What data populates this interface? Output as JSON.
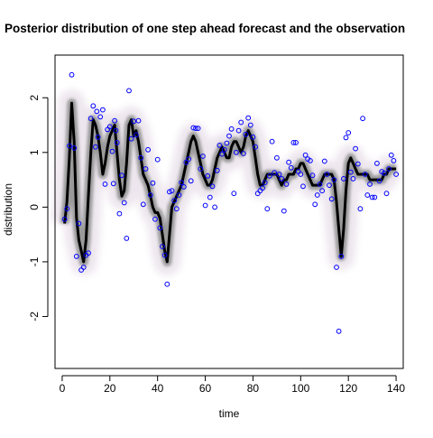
{
  "chart_data": {
    "type": "scatter",
    "title": "Posterior distribution of one step ahead forecast and the observation",
    "xlabel": "time",
    "ylabel": "distribution",
    "xlim": [
      -3,
      143
    ],
    "ylim": [
      -2.95,
      2.78
    ],
    "x_ticks": [
      0,
      20,
      40,
      60,
      80,
      100,
      120,
      140
    ],
    "y_ticks": [
      -2,
      -1,
      0,
      1,
      2
    ],
    "grid": false,
    "legend": "none",
    "colors": {
      "points": "#0000ff",
      "forecast": "#000000",
      "axes": "#000000"
    },
    "series": [
      {
        "kind": "forecast-density",
        "x": [
          1,
          2,
          3,
          4,
          5,
          6,
          7,
          8,
          9,
          10,
          11,
          12,
          13,
          14,
          15,
          16,
          17,
          18,
          19,
          20,
          21,
          22,
          23,
          24,
          25,
          26,
          27,
          28,
          29,
          30,
          31,
          32,
          33,
          34,
          35,
          36,
          37,
          38,
          39,
          40,
          41,
          42,
          43,
          44,
          45,
          46,
          47,
          48,
          49,
          50,
          51,
          52,
          53,
          54,
          55,
          56,
          57,
          58,
          59,
          60,
          61,
          62,
          63,
          64,
          65,
          66,
          67,
          68,
          69,
          70,
          71,
          72,
          73,
          74,
          75,
          76,
          77,
          78,
          79,
          80,
          81,
          82,
          83,
          84,
          85,
          86,
          87,
          88,
          89,
          90,
          91,
          92,
          93,
          94,
          95,
          96,
          97,
          98,
          99,
          100,
          101,
          102,
          103,
          104,
          105,
          106,
          107,
          108,
          109,
          110,
          111,
          112,
          113,
          114,
          115,
          116,
          117,
          118,
          119,
          120,
          121,
          122,
          123,
          124,
          125,
          126,
          127,
          128,
          129,
          130,
          131,
          132,
          133,
          134,
          135,
          136,
          137,
          138,
          139,
          140
        ],
        "y": [
          -0.3,
          0.1,
          0.9,
          1.9,
          1.2,
          -0.2,
          -0.6,
          -0.8,
          -1.0,
          -0.6,
          0.2,
          1.0,
          1.6,
          1.5,
          1.3,
          1.0,
          0.6,
          0.8,
          1.1,
          1.3,
          1.4,
          1.5,
          1.0,
          0.5,
          0.2,
          0.3,
          0.8,
          1.5,
          1.6,
          1.3,
          1.4,
          1.2,
          0.9,
          0.6,
          0.5,
          0.4,
          0.2,
          0.0,
          -0.1,
          -0.1,
          -0.2,
          -0.5,
          -0.8,
          -1.0,
          -0.5,
          0.0,
          0.1,
          0.2,
          0.3,
          0.4,
          0.6,
          0.8,
          1.0,
          1.2,
          1.3,
          1.2,
          1.0,
          0.8,
          0.6,
          0.5,
          0.4,
          0.4,
          0.5,
          0.7,
          0.9,
          1.0,
          1.1,
          1.0,
          0.9,
          0.9,
          1.1,
          1.2,
          1.2,
          1.1,
          1.0,
          1.1,
          1.3,
          1.4,
          1.3,
          1.2,
          0.9,
          0.6,
          0.4,
          0.4,
          0.5,
          0.6,
          0.6,
          0.6,
          0.6,
          0.6,
          0.5,
          0.4,
          0.5,
          0.5,
          0.6,
          0.6,
          0.6,
          0.7,
          0.7,
          0.8,
          0.8,
          0.7,
          0.6,
          0.5,
          0.4,
          0.4,
          0.4,
          0.4,
          0.5,
          0.6,
          0.6,
          0.6,
          0.6,
          0.5,
          0.1,
          -0.4,
          -0.9,
          -0.4,
          0.3,
          0.8,
          0.9,
          0.8,
          0.7,
          0.6,
          0.6,
          0.6,
          0.6,
          0.6,
          0.5,
          0.5,
          0.5,
          0.5,
          0.5,
          0.5,
          0.6,
          0.6,
          0.7,
          0.7,
          0.7,
          0.7
        ]
      },
      {
        "kind": "observations",
        "points": [
          [
            1,
            -0.22
          ],
          [
            2,
            -0.03
          ],
          [
            3,
            1.12
          ],
          [
            4,
            2.42
          ],
          [
            5,
            1.08
          ],
          [
            6,
            -0.9
          ],
          [
            7,
            -0.3
          ],
          [
            8,
            -1.15
          ],
          [
            9,
            -1.1
          ],
          [
            10,
            -0.88
          ],
          [
            11,
            -0.84
          ],
          [
            12,
            1.62
          ],
          [
            13,
            1.85
          ],
          [
            14,
            1.1
          ],
          [
            14.5,
            1.75
          ],
          [
            15,
            1.28
          ],
          [
            16,
            1.65
          ],
          [
            17,
            1.78
          ],
          [
            18,
            0.42
          ],
          [
            19,
            1.42
          ],
          [
            20,
            1.47
          ],
          [
            21,
            1.02
          ],
          [
            21.5,
            0.43
          ],
          [
            22,
            1.58
          ],
          [
            22.5,
            1.4
          ],
          [
            23,
            1.18
          ],
          [
            24,
            -0.12
          ],
          [
            25,
            0.58
          ],
          [
            26,
            0.08
          ],
          [
            27,
            -0.57
          ],
          [
            28,
            2.13
          ],
          [
            29,
            1.25
          ],
          [
            30,
            1.57
          ],
          [
            31,
            1.32
          ],
          [
            32,
            1.58
          ],
          [
            33,
            0.9
          ],
          [
            34,
            0.05
          ],
          [
            35,
            0.7
          ],
          [
            36,
            1.05
          ],
          [
            37,
            0.22
          ],
          [
            38,
            0.44
          ],
          [
            39,
            -0.22
          ],
          [
            40,
            0.87
          ],
          [
            41,
            -0.38
          ],
          [
            42,
            -0.72
          ],
          [
            43,
            -0.88
          ],
          [
            44,
            -1.41
          ],
          [
            45,
            0.28
          ],
          [
            46,
            0.3
          ],
          [
            47,
            0.12
          ],
          [
            48,
            -0.03
          ],
          [
            49,
            0.22
          ],
          [
            50,
            0.45
          ],
          [
            51,
            0.37
          ],
          [
            52,
            0.82
          ],
          [
            53,
            0.88
          ],
          [
            54,
            0.48
          ],
          [
            55,
            1.45
          ],
          [
            56,
            1.44
          ],
          [
            57,
            1.44
          ],
          [
            58,
            0.7
          ],
          [
            59,
            0.93
          ],
          [
            60,
            0.03
          ],
          [
            61,
            0.57
          ],
          [
            62,
            0.18
          ],
          [
            63,
            0.38
          ],
          [
            64,
            0.0
          ],
          [
            65,
            0.67
          ],
          [
            66,
            1.13
          ],
          [
            67,
            0.97
          ],
          [
            68,
            1.05
          ],
          [
            69,
            1.17
          ],
          [
            70,
            1.3
          ],
          [
            71,
            1.43
          ],
          [
            72,
            0.25
          ],
          [
            73,
            1.0
          ],
          [
            74,
            1.4
          ],
          [
            75,
            1.55
          ],
          [
            76,
            0.98
          ],
          [
            77,
            1.33
          ],
          [
            78,
            1.63
          ],
          [
            79,
            1.5
          ],
          [
            80,
            1.28
          ],
          [
            81,
            1.1
          ],
          [
            82,
            0.25
          ],
          [
            83,
            0.3
          ],
          [
            84,
            0.35
          ],
          [
            85,
            0.45
          ],
          [
            86,
            -0.03
          ],
          [
            87,
            0.57
          ],
          [
            88,
            1.2
          ],
          [
            89,
            0.63
          ],
          [
            90,
            0.9
          ],
          [
            91,
            0.6
          ],
          [
            92,
            0.52
          ],
          [
            93,
            -0.07
          ],
          [
            94,
            0.42
          ],
          [
            95,
            0.82
          ],
          [
            96,
            0.72
          ],
          [
            97,
            1.18
          ],
          [
            98,
            1.18
          ],
          [
            99,
            0.65
          ],
          [
            100,
            0.6
          ],
          [
            101,
            0.38
          ],
          [
            102,
            0.95
          ],
          [
            103,
            0.88
          ],
          [
            104,
            0.85
          ],
          [
            105,
            0.58
          ],
          [
            106,
            0.05
          ],
          [
            107,
            0.22
          ],
          [
            108,
            0.42
          ],
          [
            109,
            0.3
          ],
          [
            110,
            0.84
          ],
          [
            111,
            0.6
          ],
          [
            112,
            0.4
          ],
          [
            113,
            0.15
          ],
          [
            114,
            0.5
          ],
          [
            115,
            -1.1
          ],
          [
            116,
            -2.27
          ],
          [
            117,
            -0.9
          ],
          [
            118,
            0.52
          ],
          [
            119,
            1.27
          ],
          [
            120,
            1.36
          ],
          [
            121,
            0.64
          ],
          [
            122,
            0.52
          ],
          [
            123,
            1.07
          ],
          [
            124,
            0.79
          ],
          [
            125,
            -0.03
          ],
          [
            126,
            1.62
          ],
          [
            127,
            0.6
          ],
          [
            128,
            0.22
          ],
          [
            129,
            0.42
          ],
          [
            130,
            0.18
          ],
          [
            131,
            0.18
          ],
          [
            132,
            0.8
          ],
          [
            133,
            0.48
          ],
          [
            134,
            0.65
          ],
          [
            135,
            0.62
          ],
          [
            136,
            0.25
          ],
          [
            137,
            0.7
          ],
          [
            138,
            0.95
          ],
          [
            139,
            0.85
          ],
          [
            140,
            0.6
          ]
        ]
      }
    ]
  }
}
